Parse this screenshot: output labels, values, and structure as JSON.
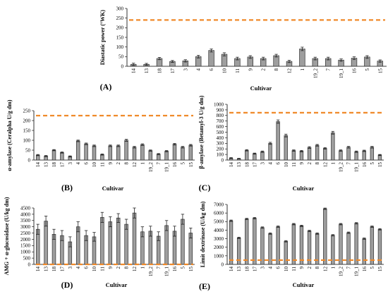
{
  "colors": {
    "bar_fill": "#9e9e9e",
    "bar_stroke": "#303030",
    "reference_line": "#f08a2a",
    "axis": "#000000"
  },
  "chart_data": [
    {
      "panel": "(A)",
      "type": "bar",
      "xlabel": "Cultivar",
      "ylabel": "Diastatic power (°WK)",
      "ylim": [
        0,
        300
      ],
      "yticks": [
        0,
        50,
        100,
        150,
        200,
        250,
        300
      ],
      "reference_line": 240,
      "categories": [
        "14",
        "13",
        "18",
        "17",
        "3",
        "4",
        "6",
        "10",
        "11",
        "9",
        "2",
        "8",
        "12",
        "1",
        "19_2",
        "7",
        "19_1",
        "16",
        "5",
        "15"
      ],
      "values": [
        10,
        10,
        40,
        25,
        28,
        50,
        82,
        62,
        40,
        48,
        40,
        55,
        25,
        90,
        40,
        40,
        32,
        42,
        48,
        27
      ],
      "errors": [
        6,
        5,
        6,
        5,
        6,
        7,
        8,
        8,
        7,
        7,
        7,
        7,
        6,
        9,
        7,
        7,
        6,
        7,
        7,
        6
      ],
      "grid": false,
      "legend": "none"
    },
    {
      "panel": "(B)",
      "type": "bar",
      "xlabel": "Cultivar",
      "ylabel": "α-amylase (Ceralpha U/g dm)",
      "ylim": [
        0,
        250
      ],
      "yticks": [
        0,
        50,
        100,
        150,
        200,
        250
      ],
      "reference_line": 225,
      "categories": [
        "14",
        "13",
        "18",
        "17",
        "3",
        "4",
        "6",
        "10",
        "11",
        "9",
        "2",
        "8",
        "12",
        "1",
        "19_2",
        "7",
        "19_1",
        "16",
        "5",
        "15"
      ],
      "values": [
        25,
        20,
        50,
        38,
        18,
        97,
        82,
        72,
        28,
        72,
        72,
        100,
        65,
        78,
        48,
        30,
        45,
        80,
        65,
        75
      ],
      "errors": [
        3,
        3,
        3,
        3,
        3,
        4,
        4,
        4,
        3,
        4,
        4,
        5,
        4,
        4,
        3,
        3,
        3,
        4,
        4,
        4
      ],
      "grid": false,
      "legend": "none"
    },
    {
      "panel": "(C)",
      "type": "bar",
      "xlabel": "Cultivar",
      "ylabel": "β-amylase (Betamyl-3 U/g dm)",
      "ylim": [
        0,
        1000
      ],
      "yticks": [
        0,
        100,
        200,
        300,
        400,
        500,
        600,
        700,
        800,
        900,
        1000
      ],
      "reference_line": 850,
      "categories": [
        "14",
        "13",
        "18",
        "17",
        "3",
        "4",
        "6",
        "10",
        "11",
        "9",
        "2",
        "8",
        "12",
        "1",
        "19_2",
        "7",
        "19_1",
        "16",
        "5",
        "15"
      ],
      "values": [
        35,
        25,
        175,
        115,
        150,
        300,
        690,
        440,
        170,
        160,
        225,
        265,
        210,
        490,
        170,
        230,
        150,
        165,
        230,
        90
      ],
      "errors": [
        8,
        6,
        12,
        10,
        12,
        18,
        30,
        25,
        12,
        12,
        15,
        15,
        14,
        25,
        12,
        15,
        12,
        12,
        15,
        10
      ],
      "grid": false,
      "legend": "none"
    },
    {
      "panel": "(D)",
      "type": "bar",
      "xlabel": "Cultivar",
      "ylabel": "AMG + α-glucosidase (U/kg dm)",
      "ylim": [
        0,
        4500
      ],
      "yticks": [
        0,
        500,
        1000,
        1500,
        2000,
        2500,
        3000,
        3500,
        4000,
        4500
      ],
      "reference_line": 0,
      "categories": [
        "14",
        "13",
        "18",
        "17",
        "3",
        "4",
        "6",
        "10",
        "11",
        "9",
        "2",
        "8",
        "12",
        "1",
        "19_2",
        "7",
        "19_1",
        "16",
        "5",
        "15"
      ],
      "values": [
        2800,
        3450,
        2400,
        2300,
        1800,
        3000,
        2300,
        2200,
        3750,
        3400,
        3700,
        3200,
        4100,
        2600,
        2650,
        2250,
        3100,
        2650,
        3600,
        2500
      ],
      "errors": [
        400,
        400,
        400,
        400,
        400,
        400,
        400,
        350,
        400,
        400,
        350,
        400,
        400,
        400,
        400,
        350,
        400,
        400,
        400,
        400
      ],
      "grid": false,
      "legend": "none"
    },
    {
      "panel": "(E)",
      "type": "bar",
      "xlabel": "Cultivar",
      "ylabel": "Limit dextrinase (U/kg dm)",
      "ylim": [
        0,
        7000
      ],
      "yticks": [
        0,
        1000,
        2000,
        3000,
        4000,
        5000,
        6000,
        7000
      ],
      "reference_line": 500,
      "categories": [
        "14",
        "13",
        "18",
        "17",
        "3",
        "4",
        "6",
        "10",
        "11",
        "9",
        "2",
        "8",
        "12",
        "1",
        "19_2",
        "7",
        "19_1",
        "16",
        "5",
        "15"
      ],
      "values": [
        5100,
        3100,
        5300,
        5400,
        4300,
        3600,
        4400,
        2700,
        4700,
        4500,
        3900,
        3600,
        6500,
        3400,
        4700,
        3700,
        4800,
        3000,
        4400,
        4100
      ],
      "errors": [
        80,
        80,
        80,
        80,
        80,
        80,
        80,
        80,
        80,
        80,
        80,
        80,
        80,
        80,
        80,
        80,
        80,
        80,
        80,
        80
      ],
      "grid": false,
      "legend": "none"
    }
  ]
}
